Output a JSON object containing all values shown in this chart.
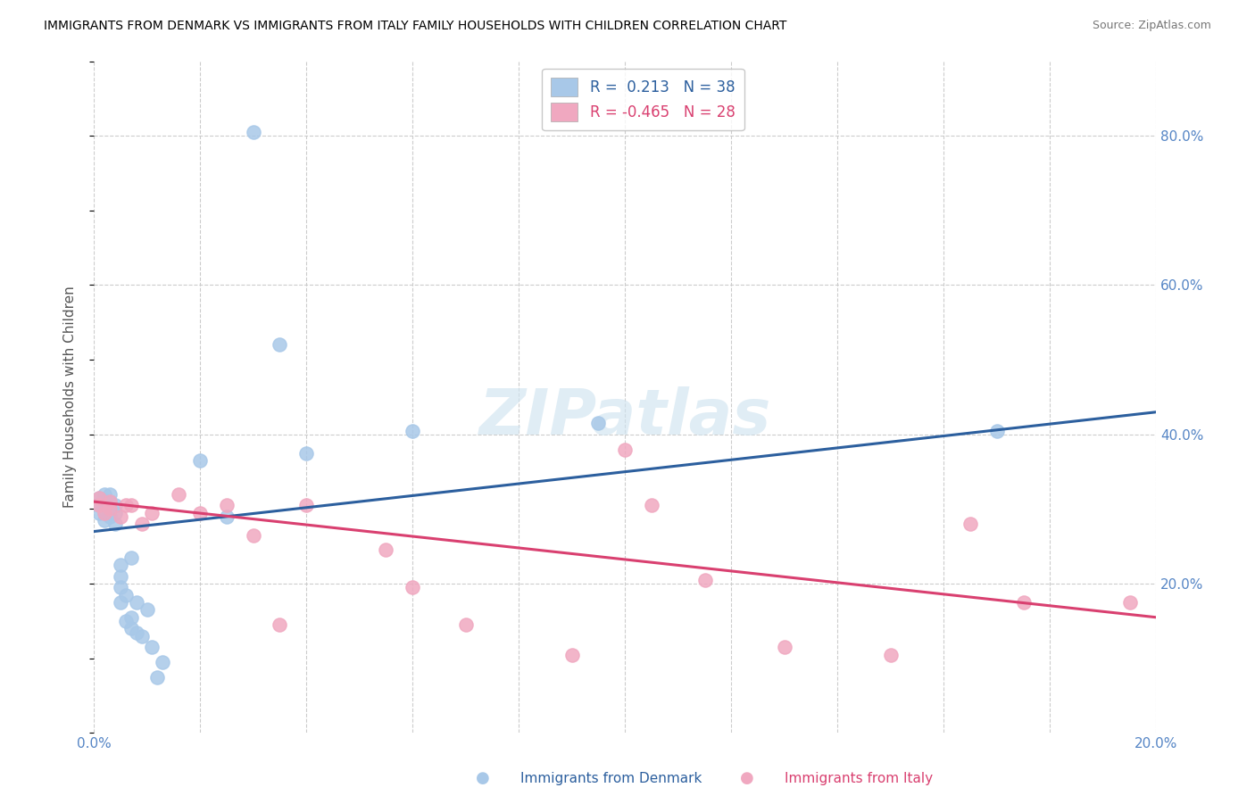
{
  "title": "IMMIGRANTS FROM DENMARK VS IMMIGRANTS FROM ITALY FAMILY HOUSEHOLDS WITH CHILDREN CORRELATION CHART",
  "source": "Source: ZipAtlas.com",
  "ylabel": "Family Households with Children",
  "xlim": [
    0.0,
    0.2
  ],
  "ylim": [
    0.0,
    0.9
  ],
  "ytick_right_labels": [
    "80.0%",
    "60.0%",
    "40.0%",
    "20.0%"
  ],
  "ytick_right_values": [
    0.8,
    0.6,
    0.4,
    0.2
  ],
  "denmark_color": "#a8c8e8",
  "italy_color": "#f0a8c0",
  "denmark_line_color": "#2c5f9e",
  "italy_line_color": "#d94070",
  "R_denmark": 0.213,
  "N_denmark": 38,
  "R_italy": -0.465,
  "N_italy": 28,
  "dk_line_x0": 0.0,
  "dk_line_y0": 0.27,
  "dk_line_x1": 0.2,
  "dk_line_y1": 0.43,
  "it_line_x0": 0.0,
  "it_line_y0": 0.31,
  "it_line_x1": 0.2,
  "it_line_y1": 0.155,
  "background_color": "#ffffff",
  "grid_color": "#cccccc",
  "denmark_points_x": [
    0.001,
    0.001,
    0.001,
    0.002,
    0.002,
    0.002,
    0.002,
    0.003,
    0.003,
    0.003,
    0.003,
    0.004,
    0.004,
    0.004,
    0.005,
    0.005,
    0.005,
    0.005,
    0.006,
    0.006,
    0.007,
    0.007,
    0.007,
    0.008,
    0.008,
    0.009,
    0.01,
    0.011,
    0.012,
    0.013,
    0.02,
    0.025,
    0.03,
    0.035,
    0.04,
    0.06,
    0.095,
    0.17
  ],
  "denmark_points_y": [
    0.295,
    0.305,
    0.315,
    0.285,
    0.295,
    0.31,
    0.32,
    0.29,
    0.3,
    0.31,
    0.32,
    0.28,
    0.295,
    0.305,
    0.175,
    0.195,
    0.21,
    0.225,
    0.15,
    0.185,
    0.14,
    0.155,
    0.235,
    0.135,
    0.175,
    0.13,
    0.165,
    0.115,
    0.075,
    0.095,
    0.365,
    0.29,
    0.805,
    0.52,
    0.375,
    0.405,
    0.415,
    0.405
  ],
  "italy_points_x": [
    0.001,
    0.001,
    0.002,
    0.003,
    0.003,
    0.005,
    0.006,
    0.007,
    0.009,
    0.011,
    0.016,
    0.02,
    0.025,
    0.03,
    0.035,
    0.04,
    0.055,
    0.06,
    0.07,
    0.09,
    0.1,
    0.105,
    0.115,
    0.13,
    0.15,
    0.165,
    0.175,
    0.195
  ],
  "italy_points_y": [
    0.305,
    0.315,
    0.295,
    0.3,
    0.31,
    0.29,
    0.305,
    0.305,
    0.28,
    0.295,
    0.32,
    0.295,
    0.305,
    0.265,
    0.145,
    0.305,
    0.245,
    0.195,
    0.145,
    0.105,
    0.38,
    0.305,
    0.205,
    0.115,
    0.105,
    0.28,
    0.175,
    0.175
  ]
}
